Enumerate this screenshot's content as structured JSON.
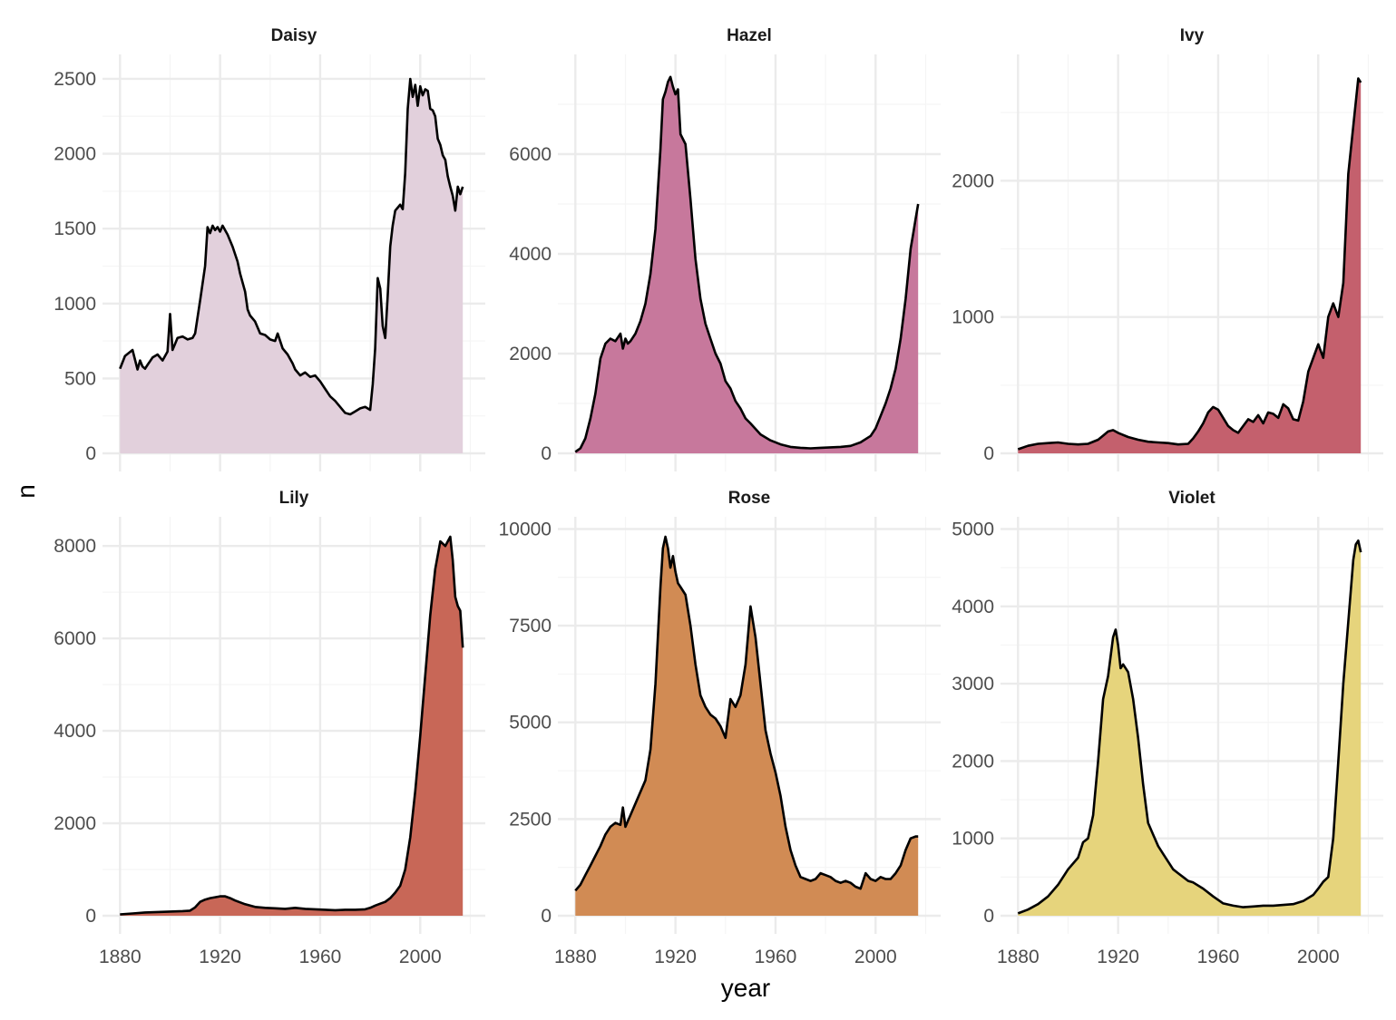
{
  "chart_data": {
    "type": "area",
    "xlabel": "year",
    "ylabel": "n",
    "xlim": [
      1873,
      2026
    ],
    "xticks": [
      1880,
      1920,
      1960,
      2000
    ],
    "xtick_labels": [
      "1880",
      "1920",
      "1960",
      "2000"
    ],
    "line_color": "#000000",
    "grid": true,
    "panels": [
      {
        "name": "Daisy",
        "fill": "#e2d0dc",
        "ylim": [
          0,
          2530
        ],
        "yticks": [
          0,
          500,
          1000,
          1500,
          2000,
          2500
        ],
        "ytick_labels": [
          "0",
          "500",
          "1000",
          "1500",
          "2000",
          "2500"
        ],
        "x": [
          1880,
          1882,
          1885,
          1887,
          1888,
          1889,
          1890,
          1891,
          1893,
          1895,
          1897,
          1899,
          1900,
          1901,
          1903,
          1905,
          1907,
          1909,
          1910,
          1912,
          1914,
          1915,
          1916,
          1917,
          1918,
          1919,
          1920,
          1921,
          1923,
          1925,
          1927,
          1928,
          1930,
          1931,
          1932,
          1934,
          1936,
          1938,
          1940,
          1942,
          1943,
          1945,
          1947,
          1949,
          1950,
          1952,
          1954,
          1956,
          1958,
          1960,
          1962,
          1964,
          1966,
          1968,
          1970,
          1972,
          1974,
          1976,
          1978,
          1980,
          1981,
          1982,
          1983,
          1984,
          1985,
          1986,
          1987,
          1988,
          1989,
          1990,
          1991,
          1992,
          1993,
          1994,
          1995,
          1996,
          1997,
          1998,
          1999,
          2000,
          2001,
          2002,
          2003,
          2004,
          2005,
          2006,
          2007,
          2008,
          2009,
          2010,
          2011,
          2012,
          2013,
          2014,
          2015,
          2016,
          2017
        ],
        "values": [
          565,
          650,
          690,
          560,
          620,
          580,
          565,
          590,
          640,
          660,
          620,
          680,
          930,
          690,
          770,
          780,
          760,
          770,
          800,
          1020,
          1250,
          1510,
          1470,
          1520,
          1490,
          1510,
          1480,
          1520,
          1460,
          1380,
          1280,
          1200,
          1080,
          960,
          920,
          880,
          800,
          790,
          760,
          750,
          800,
          700,
          660,
          600,
          560,
          520,
          540,
          510,
          520,
          480,
          430,
          380,
          350,
          310,
          270,
          260,
          280,
          300,
          310,
          290,
          460,
          700,
          1170,
          1100,
          850,
          770,
          1050,
          1380,
          1520,
          1620,
          1640,
          1660,
          1630,
          1870,
          2300,
          2500,
          2380,
          2460,
          2320,
          2450,
          2390,
          2430,
          2420,
          2300,
          2290,
          2250,
          2100,
          2060,
          1990,
          1960,
          1850,
          1780,
          1720,
          1620,
          1780,
          1730,
          1780
        ]
      },
      {
        "name": "Hazel",
        "fill": "#c7789c",
        "ylim": [
          0,
          7600
        ],
        "yticks": [
          0,
          2000,
          4000,
          6000
        ],
        "ytick_labels": [
          "0",
          "2000",
          "4000",
          "6000"
        ],
        "x": [
          1880,
          1882,
          1884,
          1886,
          1888,
          1890,
          1892,
          1894,
          1896,
          1898,
          1899,
          1900,
          1901,
          1902,
          1904,
          1906,
          1908,
          1910,
          1912,
          1914,
          1915,
          1916,
          1917,
          1918,
          1919,
          1920,
          1921,
          1922,
          1924,
          1926,
          1928,
          1930,
          1932,
          1934,
          1936,
          1938,
          1940,
          1942,
          1944,
          1946,
          1948,
          1950,
          1954,
          1958,
          1962,
          1966,
          1970,
          1974,
          1978,
          1982,
          1986,
          1990,
          1994,
          1998,
          2000,
          2002,
          2004,
          2006,
          2008,
          2010,
          2012,
          2014,
          2015,
          2016,
          2017
        ],
        "values": [
          30,
          100,
          300,
          700,
          1200,
          1900,
          2200,
          2300,
          2250,
          2400,
          2100,
          2300,
          2200,
          2250,
          2400,
          2650,
          3000,
          3600,
          4500,
          6100,
          7100,
          7250,
          7450,
          7550,
          7350,
          7200,
          7300,
          6400,
          6200,
          5100,
          3900,
          3100,
          2600,
          2300,
          2000,
          1800,
          1450,
          1300,
          1050,
          900,
          700,
          600,
          380,
          260,
          180,
          130,
          110,
          100,
          110,
          120,
          130,
          150,
          220,
          350,
          500,
          750,
          1000,
          1300,
          1700,
          2300,
          3100,
          4100,
          4400,
          4700,
          5000
        ]
      },
      {
        "name": "Ivy",
        "fill": "#c4606d",
        "ylim": [
          0,
          2780
        ],
        "yticks": [
          0,
          1000,
          2000
        ],
        "ytick_labels": [
          "0",
          "1000",
          "2000"
        ],
        "x": [
          1880,
          1884,
          1888,
          1892,
          1896,
          1900,
          1904,
          1908,
          1912,
          1914,
          1916,
          1918,
          1920,
          1924,
          1928,
          1932,
          1936,
          1940,
          1944,
          1948,
          1950,
          1952,
          1954,
          1956,
          1958,
          1960,
          1962,
          1964,
          1966,
          1968,
          1970,
          1972,
          1974,
          1976,
          1978,
          1980,
          1982,
          1984,
          1986,
          1988,
          1990,
          1992,
          1994,
          1996,
          1998,
          2000,
          2002,
          2004,
          2006,
          2008,
          2010,
          2012,
          2014,
          2016,
          2017
        ],
        "values": [
          30,
          55,
          70,
          75,
          80,
          70,
          65,
          70,
          100,
          130,
          160,
          170,
          150,
          120,
          100,
          85,
          80,
          75,
          65,
          70,
          110,
          160,
          220,
          300,
          340,
          320,
          260,
          200,
          170,
          150,
          200,
          250,
          230,
          280,
          220,
          300,
          290,
          260,
          360,
          330,
          250,
          240,
          380,
          600,
          700,
          800,
          700,
          1000,
          1100,
          1000,
          1250,
          2050,
          2400,
          2750,
          2720
        ]
      },
      {
        "name": "Lily",
        "fill": "#c86757",
        "ylim": [
          0,
          8200
        ],
        "yticks": [
          0,
          2000,
          4000,
          6000,
          8000
        ],
        "ytick_labels": [
          "0",
          "2000",
          "4000",
          "6000",
          "8000"
        ],
        "x": [
          1880,
          1885,
          1890,
          1895,
          1900,
          1905,
          1908,
          1910,
          1912,
          1914,
          1916,
          1918,
          1920,
          1922,
          1924,
          1926,
          1930,
          1934,
          1938,
          1942,
          1946,
          1950,
          1954,
          1958,
          1962,
          1966,
          1970,
          1974,
          1978,
          1980,
          1982,
          1984,
          1986,
          1988,
          1990,
          1992,
          1994,
          1996,
          1998,
          2000,
          2002,
          2004,
          2006,
          2008,
          2010,
          2012,
          2013,
          2014,
          2015,
          2016,
          2017
        ],
        "values": [
          30,
          50,
          70,
          80,
          90,
          100,
          110,
          180,
          300,
          350,
          380,
          400,
          420,
          420,
          380,
          330,
          250,
          190,
          170,
          160,
          150,
          170,
          150,
          140,
          130,
          120,
          130,
          130,
          140,
          170,
          220,
          260,
          300,
          380,
          500,
          650,
          1000,
          1700,
          2700,
          3900,
          5200,
          6500,
          7500,
          8100,
          8000,
          8200,
          7700,
          6900,
          6700,
          6600,
          5800
        ]
      },
      {
        "name": "Rose",
        "fill": "#d18b54",
        "ylim": [
          0,
          9800
        ],
        "yticks": [
          0,
          2500,
          5000,
          7500,
          10000
        ],
        "ytick_labels": [
          "0",
          "2500",
          "5000",
          "7500",
          "10000"
        ],
        "x": [
          1880,
          1882,
          1884,
          1886,
          1888,
          1890,
          1892,
          1894,
          1896,
          1898,
          1899,
          1900,
          1901,
          1902,
          1904,
          1906,
          1908,
          1910,
          1912,
          1914,
          1915,
          1916,
          1917,
          1918,
          1919,
          1920,
          1921,
          1922,
          1924,
          1926,
          1928,
          1930,
          1932,
          1934,
          1936,
          1938,
          1940,
          1942,
          1944,
          1946,
          1948,
          1950,
          1952,
          1954,
          1956,
          1958,
          1960,
          1962,
          1964,
          1966,
          1968,
          1970,
          1972,
          1974,
          1976,
          1978,
          1980,
          1982,
          1984,
          1986,
          1988,
          1990,
          1992,
          1994,
          1996,
          1998,
          2000,
          2002,
          2004,
          2006,
          2008,
          2010,
          2012,
          2014,
          2016,
          2017
        ],
        "values": [
          650,
          800,
          1050,
          1300,
          1550,
          1800,
          2100,
          2300,
          2400,
          2350,
          2800,
          2300,
          2450,
          2600,
          2900,
          3200,
          3500,
          4300,
          6000,
          8500,
          9500,
          9800,
          9500,
          9000,
          9300,
          8900,
          8600,
          8500,
          8300,
          7500,
          6500,
          5700,
          5400,
          5200,
          5100,
          4900,
          4600,
          5600,
          5400,
          5700,
          6500,
          8000,
          7200,
          6000,
          4800,
          4200,
          3700,
          3100,
          2300,
          1700,
          1300,
          1000,
          950,
          900,
          950,
          1100,
          1050,
          1000,
          900,
          850,
          900,
          850,
          750,
          700,
          1100,
          950,
          900,
          1000,
          950,
          950,
          1100,
          1300,
          1700,
          2000,
          2050,
          2050
        ]
      },
      {
        "name": "Violet",
        "fill": "#e6d47c",
        "ylim": [
          0,
          4900
        ],
        "yticks": [
          0,
          1000,
          2000,
          3000,
          4000,
          5000
        ],
        "ytick_labels": [
          "0",
          "1000",
          "2000",
          "3000",
          "4000",
          "5000"
        ],
        "x": [
          1880,
          1884,
          1888,
          1892,
          1896,
          1900,
          1904,
          1906,
          1908,
          1910,
          1912,
          1914,
          1916,
          1918,
          1919,
          1920,
          1921,
          1922,
          1924,
          1926,
          1928,
          1930,
          1932,
          1934,
          1936,
          1938,
          1940,
          1942,
          1944,
          1946,
          1948,
          1950,
          1954,
          1958,
          1962,
          1966,
          1970,
          1974,
          1978,
          1982,
          1986,
          1990,
          1994,
          1998,
          2000,
          2002,
          2004,
          2006,
          2008,
          2010,
          2012,
          2014,
          2015,
          2016,
          2017
        ],
        "values": [
          30,
          80,
          150,
          250,
          400,
          600,
          750,
          950,
          1000,
          1300,
          2000,
          2800,
          3100,
          3600,
          3700,
          3500,
          3200,
          3250,
          3150,
          2800,
          2300,
          1700,
          1200,
          1050,
          900,
          800,
          700,
          600,
          550,
          500,
          450,
          430,
          350,
          250,
          160,
          130,
          110,
          120,
          130,
          130,
          140,
          150,
          190,
          270,
          350,
          440,
          500,
          1000,
          2000,
          3000,
          3800,
          4600,
          4800,
          4850,
          4700
        ]
      }
    ]
  }
}
